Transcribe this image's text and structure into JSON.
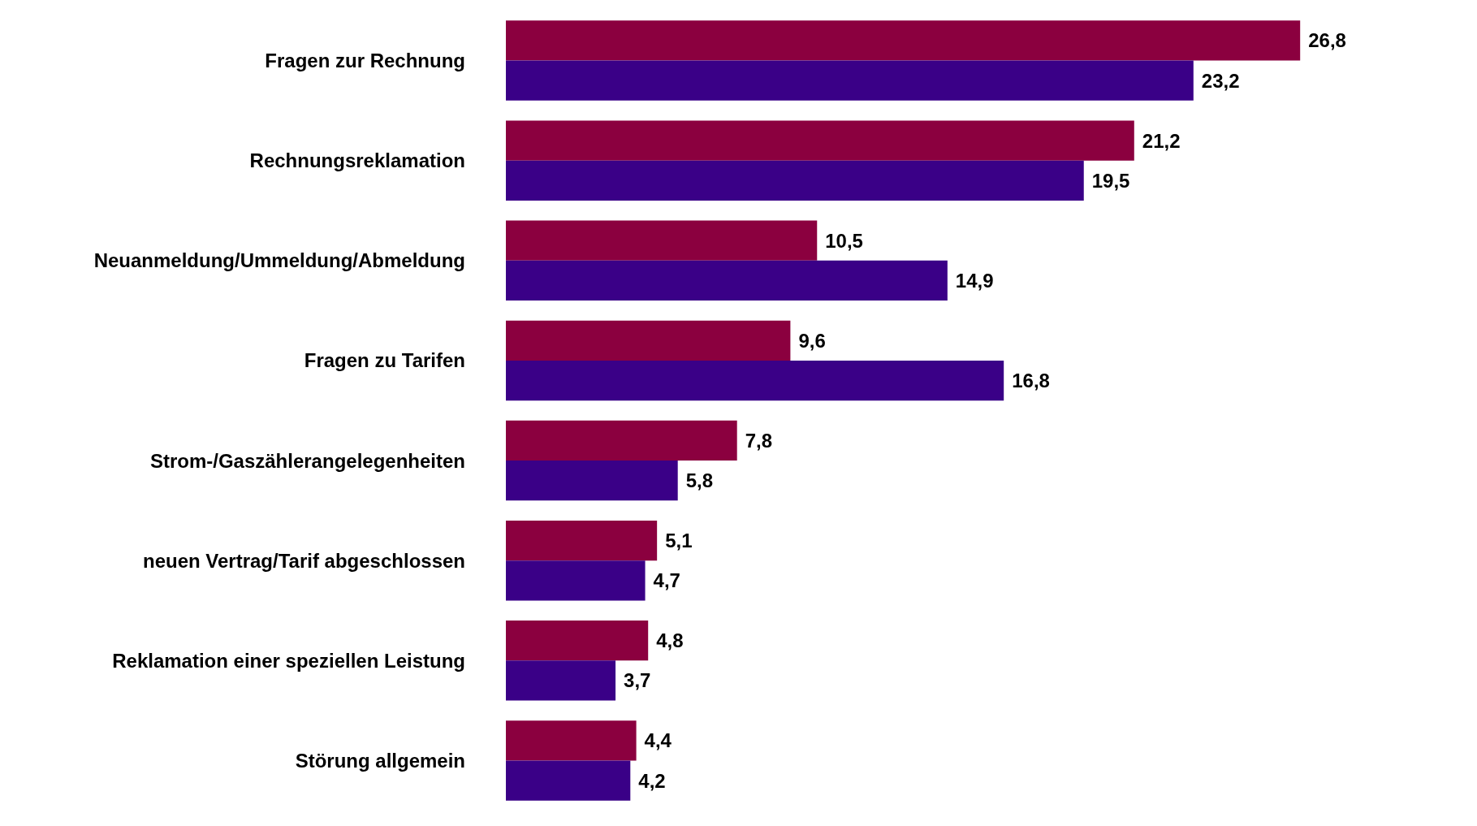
{
  "chart_data": {
    "type": "bar",
    "orientation": "horizontal",
    "grid": false,
    "categories": [
      "Fragen zur Rechnung",
      "Rechnungsreklamation",
      "Neuanmeldung/Ummeldung/Abmeldung",
      "Fragen zu Tarifen",
      "Strom-/Gaszählerangelegenheiten",
      "neuen Vertrag/Tarif abgeschlossen",
      "Reklamation einer speziellen Leistung",
      "Störung allgemein"
    ],
    "series": [
      {
        "color": "#8b003f",
        "values": [
          26.8,
          21.2,
          10.5,
          9.6,
          7.8,
          5.1,
          4.8,
          4.4
        ],
        "value_labels": [
          "26,8",
          "21,2",
          "10,5",
          "9,6",
          "7,8",
          "5,1",
          "4,8",
          "4,4"
        ]
      },
      {
        "color": "#3a0087",
        "values": [
          23.2,
          19.5,
          14.9,
          16.8,
          5.8,
          4.7,
          3.7,
          4.2
        ],
        "value_labels": [
          "23,2",
          "19,5",
          "14,9",
          "16,8",
          "5,8",
          "4,7",
          "3,7",
          "4,2"
        ]
      }
    ]
  }
}
